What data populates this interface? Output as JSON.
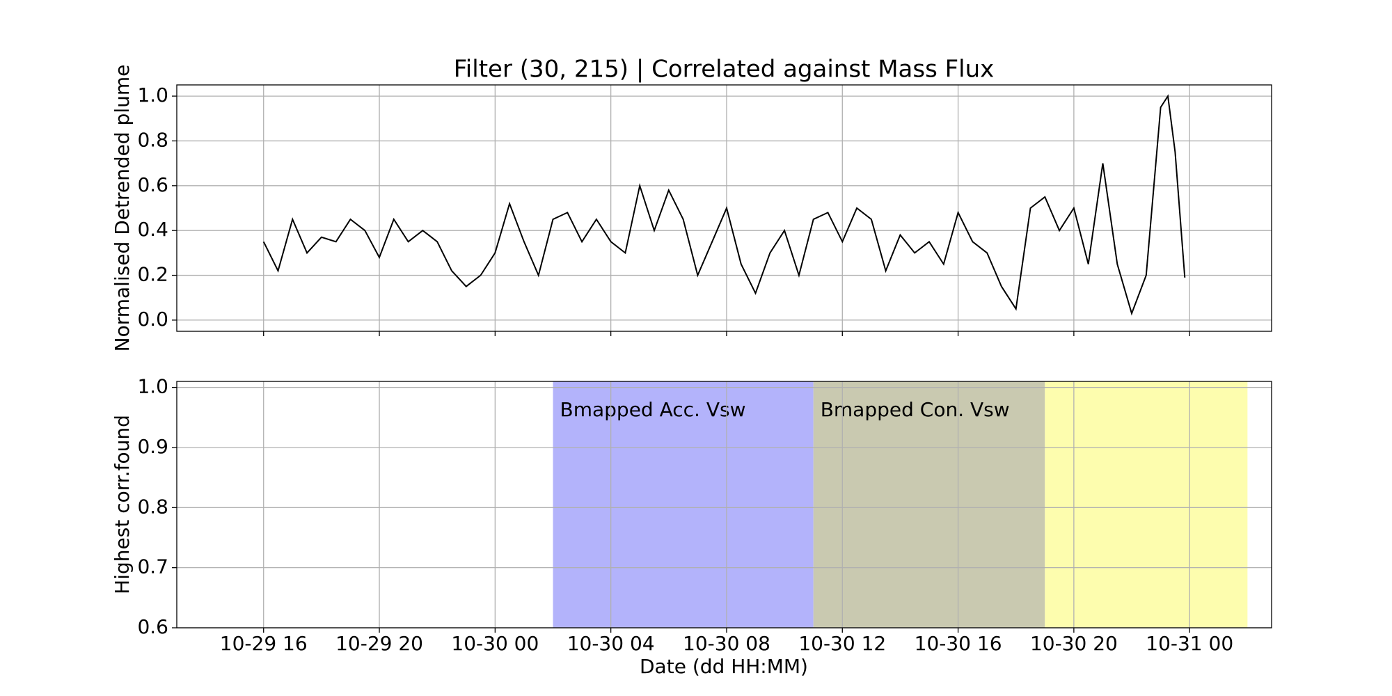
{
  "chart_data": [
    {
      "type": "line",
      "title": "Filter (30, 215) | Correlated against Mass Flux",
      "ylabel": "Normalised Detrended plume",
      "xlim": [
        "10-29 13:00",
        "10-31 02:50"
      ],
      "ylim": [
        -0.05,
        1.05
      ],
      "yticks": [
        {
          "value": 0,
          "label": "0.0"
        },
        0.2,
        0.4,
        0.6,
        0.8,
        {
          "value": 1,
          "label": "1.0"
        }
      ],
      "grid": true,
      "x": [
        "10-29 16:00",
        "10-29 16:30",
        "10-29 17:00",
        "10-29 17:30",
        "10-29 18:00",
        "10-29 18:30",
        "10-29 19:00",
        "10-29 19:30",
        "10-29 20:00",
        "10-29 20:30",
        "10-29 21:00",
        "10-29 21:30",
        "10-29 22:00",
        "10-29 22:30",
        "10-29 23:00",
        "10-29 23:30",
        "10-30 00:00",
        "10-30 00:30",
        "10-30 01:00",
        "10-30 01:30",
        "10-30 02:00",
        "10-30 02:30",
        "10-30 03:00",
        "10-30 03:30",
        "10-30 04:00",
        "10-30 04:30",
        "10-30 05:00",
        "10-30 05:30",
        "10-30 06:00",
        "10-30 06:30",
        "10-30 07:00",
        "10-30 07:30",
        "10-30 08:00",
        "10-30 08:30",
        "10-30 09:00",
        "10-30 09:30",
        "10-30 10:00",
        "10-30 10:30",
        "10-30 11:00",
        "10-30 11:30",
        "10-30 12:00",
        "10-30 12:30",
        "10-30 13:00",
        "10-30 13:30",
        "10-30 14:00",
        "10-30 14:30",
        "10-30 15:00",
        "10-30 15:30",
        "10-30 16:00",
        "10-30 16:30",
        "10-30 17:00",
        "10-30 17:30",
        "10-30 18:00",
        "10-30 18:30",
        "10-30 19:00",
        "10-30 19:30",
        "10-30 20:00",
        "10-30 20:30",
        "10-30 21:00",
        "10-30 21:30",
        "10-30 22:00",
        "10-30 22:30",
        "10-30 23:00",
        "10-30 23:15",
        "10-30 23:30",
        "10-30 23:50"
      ],
      "series": [
        {
          "color": "#000000",
          "values": [
            0.35,
            0.22,
            0.45,
            0.3,
            0.37,
            0.35,
            0.45,
            0.4,
            0.28,
            0.45,
            0.35,
            0.4,
            0.35,
            0.22,
            0.15,
            0.2,
            0.3,
            0.52,
            0.35,
            0.2,
            0.45,
            0.48,
            0.35,
            0.45,
            0.35,
            0.3,
            0.6,
            0.4,
            0.58,
            0.45,
            0.2,
            0.35,
            0.5,
            0.25,
            0.12,
            0.3,
            0.4,
            0.2,
            0.45,
            0.48,
            0.35,
            0.5,
            0.45,
            0.22,
            0.38,
            0.3,
            0.35,
            0.25,
            0.48,
            0.35,
            0.3,
            0.15,
            0.05,
            0.5,
            0.55,
            0.4,
            0.5,
            0.25,
            0.7,
            0.25,
            0.03,
            0.2,
            0.95,
            1.0,
            0.75,
            0.19
          ]
        }
      ]
    },
    {
      "type": "span",
      "ylabel": "Highest corr.found",
      "xlabel": "Date (dd HH:MM)",
      "xlim": [
        "10-29 13:00",
        "10-31 02:50"
      ],
      "xticks": [
        {
          "value": "10-29 16:00",
          "label": "10-29 16"
        },
        {
          "value": "10-29 20:00",
          "label": "10-29 20"
        },
        {
          "value": "10-30 00:00",
          "label": "10-30 00"
        },
        {
          "value": "10-30 04:00",
          "label": "10-30 04"
        },
        {
          "value": "10-30 08:00",
          "label": "10-30 08"
        },
        {
          "value": "10-30 12:00",
          "label": "10-30 12"
        },
        {
          "value": "10-30 16:00",
          "label": "10-30 16"
        },
        {
          "value": "10-30 20:00",
          "label": "10-30 20"
        },
        {
          "value": "10-31 00:00",
          "label": "10-31 00"
        }
      ],
      "ylim": [
        0.6,
        1.01
      ],
      "yticks": [
        0.6,
        0.7,
        0.8,
        0.9,
        {
          "value": 1,
          "label": "1.0"
        }
      ],
      "grid": true,
      "spans": [
        {
          "label": "Bmapped Acc. Vsw",
          "start": "10-30 02:00",
          "end": "10-30 11:00",
          "color": "#b3b3fb"
        },
        {
          "label": "Bmapped Con. Vsw",
          "start": "10-30 11:00",
          "end": "10-30 19:00",
          "color": "#c9c9b0"
        },
        {
          "start": "10-30 19:00",
          "end": "10-31 02:00",
          "color": "#fdfdae"
        }
      ]
    }
  ]
}
